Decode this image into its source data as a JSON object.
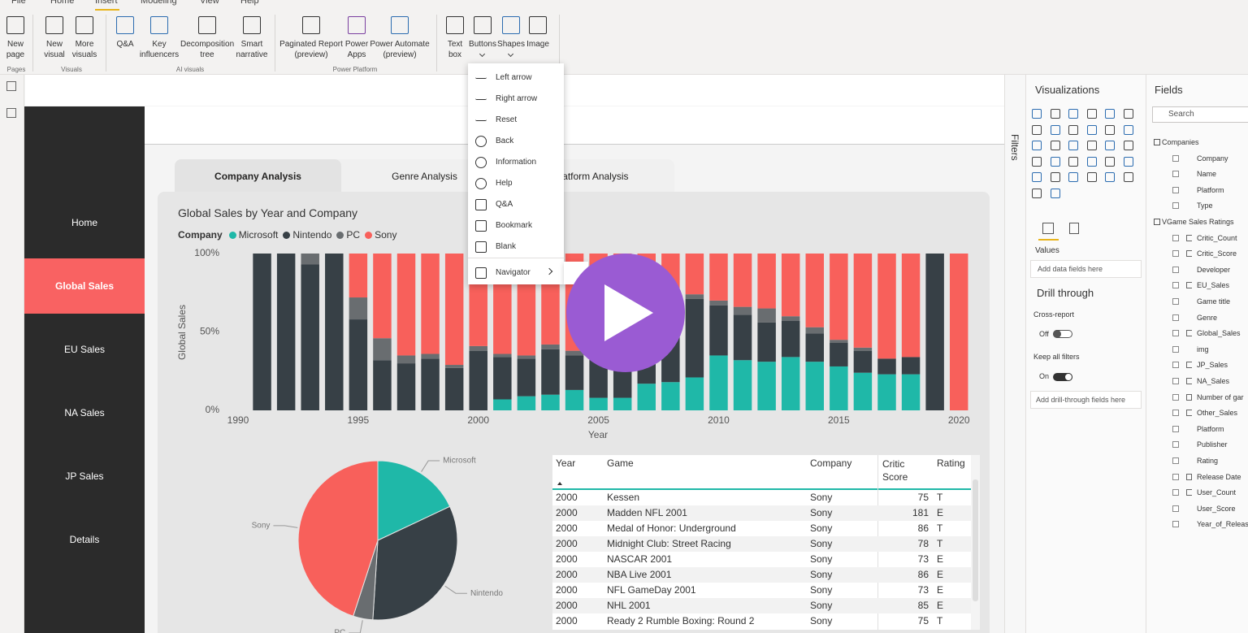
{
  "ribbon": {
    "tabs": [
      "File",
      "Home",
      "Insert",
      "Modeling",
      "View",
      "Help"
    ],
    "active_tab": 2,
    "buttons": [
      "New page",
      "New visual",
      "More visuals",
      "Q&A",
      "Key influencers",
      "Decomposition tree",
      "Smart narrative",
      "Paginated Report (preview)",
      "Power Apps",
      "Power Automate (preview)",
      "Text box",
      "Buttons",
      "Shapes",
      "Image"
    ],
    "groups": [
      "Pages",
      "Visuals",
      "AI visuals",
      "Power Platform"
    ]
  },
  "dropdown": {
    "items": [
      "Left arrow",
      "Right arrow",
      "Reset",
      "Back",
      "Information",
      "Help",
      "Q&A",
      "Bookmark",
      "Blank",
      "Navigator"
    ]
  },
  "nav": {
    "items": [
      "Home",
      "Global Sales",
      "EU Sales",
      "NA Sales",
      "JP Sales",
      "Details"
    ],
    "active": 1
  },
  "report_tabs": {
    "items": [
      "Company Analysis",
      "Genre Analysis",
      "Platform Analysis"
    ],
    "active": 0
  },
  "chart_data": [
    {
      "type": "bar",
      "stacked": true,
      "title": "Global Sales by Year and Company",
      "legend_title": "Company",
      "x_label": "Year",
      "y_label": "Global Sales",
      "x": [
        1991,
        1992,
        1993,
        1994,
        1995,
        1996,
        1997,
        1998,
        1999,
        2000,
        2001,
        2002,
        2003,
        2004,
        2005,
        2006,
        2007,
        2008,
        2009,
        2010,
        2011,
        2012,
        2013,
        2014,
        2015,
        2016,
        2017,
        2018,
        2019,
        2020
      ],
      "xlim": [
        1990,
        2020.5
      ],
      "xticks": [
        1990,
        1995,
        2000,
        2005,
        2010,
        2015,
        2020
      ],
      "ylim": [
        0,
        100
      ],
      "yticks": [
        {
          "value": 0,
          "label": "0%"
        },
        {
          "value": 50,
          "label": "50%"
        },
        {
          "value": 100,
          "label": "100%"
        }
      ],
      "grid": false,
      "series": [
        {
          "name": "Microsoft",
          "color": "#1fb8a8",
          "values": [
            0,
            0,
            0,
            0,
            0,
            0,
            0,
            0,
            0,
            0,
            7,
            9,
            10,
            13,
            8,
            8,
            17,
            18,
            21,
            35,
            32,
            31,
            34,
            31,
            28,
            24,
            23,
            23,
            0,
            0
          ]
        },
        {
          "name": "Nintendo",
          "color": "#374046",
          "values": [
            100,
            100,
            93,
            100,
            58,
            32,
            30,
            33,
            27,
            38,
            27,
            24,
            29,
            22,
            41,
            38,
            17,
            33,
            50,
            32,
            29,
            25,
            23,
            18,
            15,
            14,
            10,
            11,
            100,
            0
          ]
        },
        {
          "name": "PC",
          "color": "#696d70",
          "values": [
            0,
            0,
            7,
            0,
            14,
            14,
            5,
            3,
            2,
            3,
            2,
            2,
            3,
            3,
            3,
            2,
            3,
            2,
            3,
            3,
            5,
            9,
            3,
            4,
            2,
            2,
            0,
            0,
            0,
            0
          ]
        },
        {
          "name": "Sony",
          "color": "#f8605b",
          "values": [
            0,
            0,
            0,
            0,
            28,
            54,
            65,
            64,
            71,
            59,
            64,
            65,
            58,
            62,
            48,
            52,
            63,
            47,
            26,
            30,
            34,
            35,
            40,
            47,
            55,
            60,
            67,
            66,
            0,
            100
          ]
        }
      ]
    },
    {
      "type": "pie",
      "categories": [
        "Microsoft",
        "Nintendo",
        "PC",
        "Sony"
      ],
      "values": [
        18,
        33,
        4,
        45
      ],
      "colors": [
        "#1fb8a8",
        "#374046",
        "#696d70",
        "#f8605b"
      ]
    }
  ],
  "table": {
    "columns": [
      "Year",
      "Game",
      "Company",
      "Critic Score",
      "Rating"
    ],
    "rows": [
      [
        2000,
        "Kessen",
        "Sony",
        75,
        "T"
      ],
      [
        2000,
        "Madden NFL 2001",
        "Sony",
        181,
        "E"
      ],
      [
        2000,
        "Medal of Honor: Underground",
        "Sony",
        86,
        "T"
      ],
      [
        2000,
        "Midnight Club: Street Racing",
        "Sony",
        78,
        "T"
      ],
      [
        2000,
        "NASCAR 2001",
        "Sony",
        73,
        "E"
      ],
      [
        2000,
        "NBA Live 2001",
        "Sony",
        86,
        "E"
      ],
      [
        2000,
        "NFL GameDay 2001",
        "Sony",
        73,
        "E"
      ],
      [
        2000,
        "NHL 2001",
        "Sony",
        85,
        "E"
      ],
      [
        2000,
        "Ready 2 Rumble Boxing: Round 2",
        "Sony",
        75,
        "T"
      ]
    ]
  },
  "filters": {
    "label": "Filters"
  },
  "visualizations": {
    "title": "Visualizations",
    "values_label": "Values",
    "values_placeholder": "Add data fields here",
    "drill_title": "Drill through",
    "cross_report": "Cross-report",
    "cross_report_state": "Off",
    "keep_filters": "Keep all filters",
    "keep_filters_state": "On",
    "drill_placeholder": "Add drill-through fields here"
  },
  "fields": {
    "title": "Fields",
    "search": "Search",
    "tables": [
      {
        "name": "Companies",
        "fields": [
          {
            "name": "Company"
          },
          {
            "name": "Name"
          },
          {
            "name": "Platform"
          },
          {
            "name": "Type"
          }
        ]
      },
      {
        "name": "VGame Sales Ratings",
        "fields": [
          {
            "name": "Critic_Count",
            "kind": "sum"
          },
          {
            "name": "Critic_Score",
            "kind": "sum"
          },
          {
            "name": "Developer"
          },
          {
            "name": "EU_Sales",
            "kind": "sum"
          },
          {
            "name": "Game title"
          },
          {
            "name": "Genre"
          },
          {
            "name": "Global_Sales",
            "kind": "sum"
          },
          {
            "name": "img"
          },
          {
            "name": "JP_Sales",
            "kind": "sum"
          },
          {
            "name": "NA_Sales",
            "kind": "sum"
          },
          {
            "name": "Number of gar",
            "kind": "date"
          },
          {
            "name": "Other_Sales",
            "kind": "sum"
          },
          {
            "name": "Platform"
          },
          {
            "name": "Publisher"
          },
          {
            "name": "Rating"
          },
          {
            "name": "Release Date",
            "kind": "date"
          },
          {
            "name": "User_Count",
            "kind": "sum"
          },
          {
            "name": "User_Score"
          },
          {
            "name": "Year_of_Releas"
          }
        ]
      }
    ]
  }
}
